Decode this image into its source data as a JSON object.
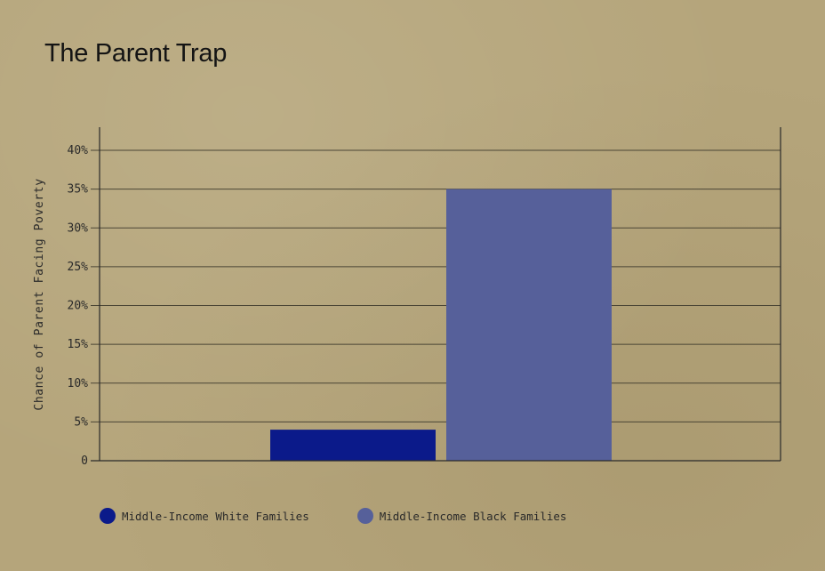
{
  "title": "The Parent Trap",
  "chart_data": {
    "type": "bar",
    "title": "The Parent Trap",
    "ylabel": "Chance of Parent Facing Poverty",
    "xlabel": "",
    "ylim": [
      0,
      42
    ],
    "yticks": [
      0,
      5,
      10,
      15,
      20,
      25,
      30,
      35,
      40
    ],
    "ytick_labels": [
      "0",
      "5%",
      "10%",
      "15%",
      "20%",
      "25%",
      "30%",
      "35%",
      "40%"
    ],
    "grid": true,
    "legend_position": "bottom-left",
    "series": [
      {
        "name": "Middle-Income White Families",
        "value": 4,
        "color": "#0b1a8a"
      },
      {
        "name": "Middle-Income Black Families",
        "value": 35,
        "color": "#56609a"
      }
    ]
  }
}
